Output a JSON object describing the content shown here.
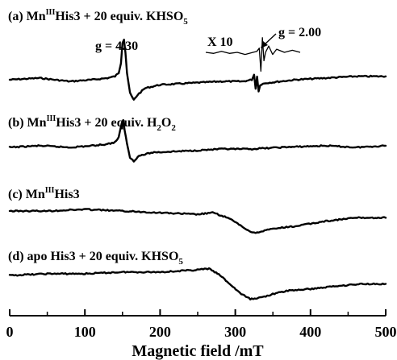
{
  "chart_data": {
    "type": "line",
    "xlabel": "Magnetic field /mT",
    "xlim": [
      0,
      500
    ],
    "x_ticks": [
      "0",
      "100",
      "200",
      "300",
      "400",
      "500"
    ],
    "grid": false,
    "legend": "none",
    "panels": [
      {
        "label": "(a) Mn",
        "label_sup": "III",
        "label_rest": "His3 + 20 equiv. KHSO",
        "label_sub": "5",
        "label_tail": "",
        "series_points": [
          [
            0,
            0
          ],
          [
            40,
            -1
          ],
          [
            80,
            1
          ],
          [
            110,
            0
          ],
          [
            130,
            -1
          ],
          [
            140,
            -2
          ],
          [
            145,
            -4
          ],
          [
            148,
            -10
          ],
          [
            150,
            -22
          ],
          [
            152,
            -24
          ],
          [
            154,
            -16
          ],
          [
            156,
            -4
          ],
          [
            160,
            8
          ],
          [
            165,
            12
          ],
          [
            170,
            9
          ],
          [
            180,
            5
          ],
          [
            200,
            3
          ],
          [
            240,
            2
          ],
          [
            280,
            1
          ],
          [
            310,
            1
          ],
          [
            322,
            0
          ],
          [
            325,
            -3
          ],
          [
            327,
            5
          ],
          [
            329,
            -2
          ],
          [
            331,
            7
          ],
          [
            333,
            3
          ],
          [
            340,
            2
          ],
          [
            380,
            0
          ],
          [
            420,
            -1
          ],
          [
            460,
            -2
          ],
          [
            500,
            -2
          ]
        ]
      },
      {
        "label": "(b) Mn",
        "label_sup": "III",
        "label_rest": "His3 + 20 equiv. H",
        "label_sub": "2",
        "label_tail": "O",
        "label_sub2": "2",
        "series_points": [
          [
            0,
            0
          ],
          [
            40,
            -1
          ],
          [
            80,
            0
          ],
          [
            110,
            -1
          ],
          [
            130,
            -2
          ],
          [
            140,
            -3
          ],
          [
            145,
            -6
          ],
          [
            149,
            -14
          ],
          [
            151,
            -16
          ],
          [
            153,
            -10
          ],
          [
            156,
            -2
          ],
          [
            160,
            6
          ],
          [
            165,
            8
          ],
          [
            172,
            5
          ],
          [
            190,
            3
          ],
          [
            240,
            2
          ],
          [
            280,
            1
          ],
          [
            320,
            1
          ],
          [
            360,
            0
          ],
          [
            420,
            -1
          ],
          [
            460,
            0
          ],
          [
            500,
            -1
          ]
        ]
      },
      {
        "label": "(c) Mn",
        "label_sup": "III",
        "label_rest": "His3",
        "label_sub": "",
        "label_tail": "",
        "series_points": [
          [
            0,
            0
          ],
          [
            50,
            0
          ],
          [
            100,
            -1
          ],
          [
            150,
            0
          ],
          [
            200,
            1
          ],
          [
            250,
            2
          ],
          [
            270,
            1
          ],
          [
            290,
            4
          ],
          [
            305,
            8
          ],
          [
            315,
            11
          ],
          [
            325,
            13
          ],
          [
            335,
            12
          ],
          [
            345,
            11
          ],
          [
            360,
            10
          ],
          [
            380,
            9
          ],
          [
            420,
            6
          ],
          [
            460,
            4
          ],
          [
            500,
            4
          ]
        ]
      },
      {
        "label": "(d) apo His3 + 20 equiv. KHSO",
        "label_sup": "",
        "label_rest": "",
        "label_sub": "5",
        "label_tail": "",
        "series_points": [
          [
            0,
            0
          ],
          [
            50,
            -1
          ],
          [
            100,
            -1
          ],
          [
            150,
            -2
          ],
          [
            200,
            -2
          ],
          [
            240,
            -3
          ],
          [
            265,
            -4
          ],
          [
            280,
            0
          ],
          [
            295,
            6
          ],
          [
            308,
            11
          ],
          [
            320,
            14
          ],
          [
            335,
            13
          ],
          [
            350,
            11
          ],
          [
            370,
            9
          ],
          [
            400,
            8
          ],
          [
            440,
            6
          ],
          [
            470,
            5
          ],
          [
            500,
            5
          ]
        ]
      }
    ],
    "annotations": [
      {
        "text": "g = 4.30",
        "x": 150,
        "panel": "a"
      },
      {
        "text": "g = 2.00",
        "x": 327,
        "panel": "a"
      },
      {
        "text": "X 10",
        "panel": "a"
      }
    ],
    "inset_points": [
      [
        0,
        0
      ],
      [
        10,
        1
      ],
      [
        20,
        -1
      ],
      [
        30,
        1
      ],
      [
        40,
        0
      ],
      [
        50,
        2
      ],
      [
        60,
        0
      ],
      [
        65,
        -1
      ],
      [
        68,
        -4
      ],
      [
        70,
        18
      ],
      [
        72,
        -14
      ],
      [
        74,
        8
      ],
      [
        76,
        0
      ],
      [
        80,
        -6
      ],
      [
        85,
        2
      ],
      [
        90,
        -3
      ],
      [
        100,
        0
      ],
      [
        110,
        -2
      ],
      [
        120,
        0
      ]
    ]
  },
  "icons": {
    "annotation_arrow": "arrow-icon"
  }
}
